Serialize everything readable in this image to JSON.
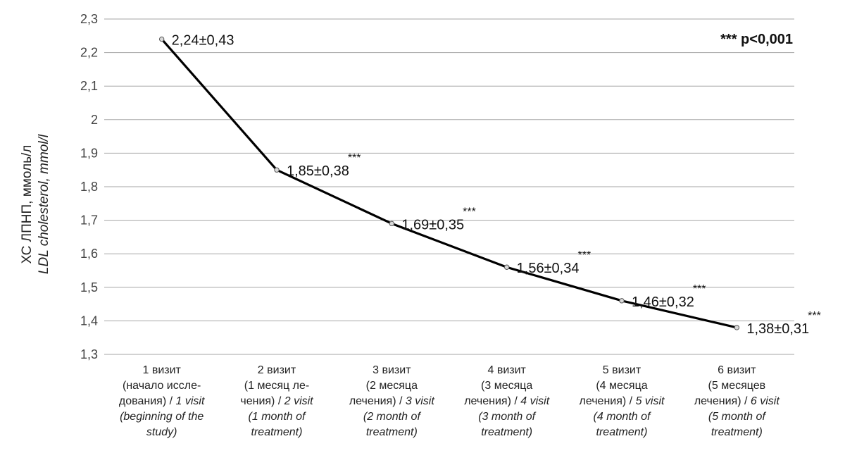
{
  "chart_data": {
    "type": "line",
    "categories": [
      [
        "1 визит",
        "(начало иссле-",
        "дования) / |1 visit",
        "(beginning of the",
        "study)"
      ],
      [
        "2 визит",
        "(1 месяц ле-",
        "чения) / |2 visit",
        "(1 month of",
        "treatment)"
      ],
      [
        "3 визит",
        "(2 месяца",
        "лечения) / |3 visit",
        "(2 month of",
        "treatment)"
      ],
      [
        "4 визит",
        "(3 месяца",
        "лечения) / |4 visit",
        "(3 month of",
        "treatment)"
      ],
      [
        "5 визит",
        "(4 месяца",
        "лечения) / |5 visit",
        "(4 month of",
        "treatment)"
      ],
      [
        "6 визит",
        "(5 месяцев",
        "лечения) / |6 visit",
        "(5 month of",
        "treatment)"
      ]
    ],
    "series": [
      {
        "values": [
          2.24,
          1.85,
          1.69,
          1.56,
          1.46,
          1.38
        ],
        "data_labels": [
          "2,24±0,43",
          "1,85±0,38",
          "1,69±0,35",
          "1,56±0,34",
          "1,46±0,32",
          "1,38±0,31"
        ],
        "significance": [
          "",
          "***",
          "***",
          "***",
          "***",
          "***"
        ],
        "color": "#000000"
      }
    ],
    "ylabel": [
      "ХС ЛПНП, ммоль/л",
      "LDL cholesterol, mmol/l"
    ],
    "ylim": [
      1.3,
      2.3
    ],
    "yticks": [
      "1,3",
      "1,4",
      "1,5",
      "1,6",
      "1,7",
      "1,8",
      "1,9",
      "2",
      "2,1",
      "2,2",
      "2,3"
    ],
    "annotation": "*** p<0,001",
    "grid": true,
    "colors": {
      "line": "#000000",
      "grid": "#a6a6a6",
      "marker_fill": "#d9d9d9"
    }
  }
}
